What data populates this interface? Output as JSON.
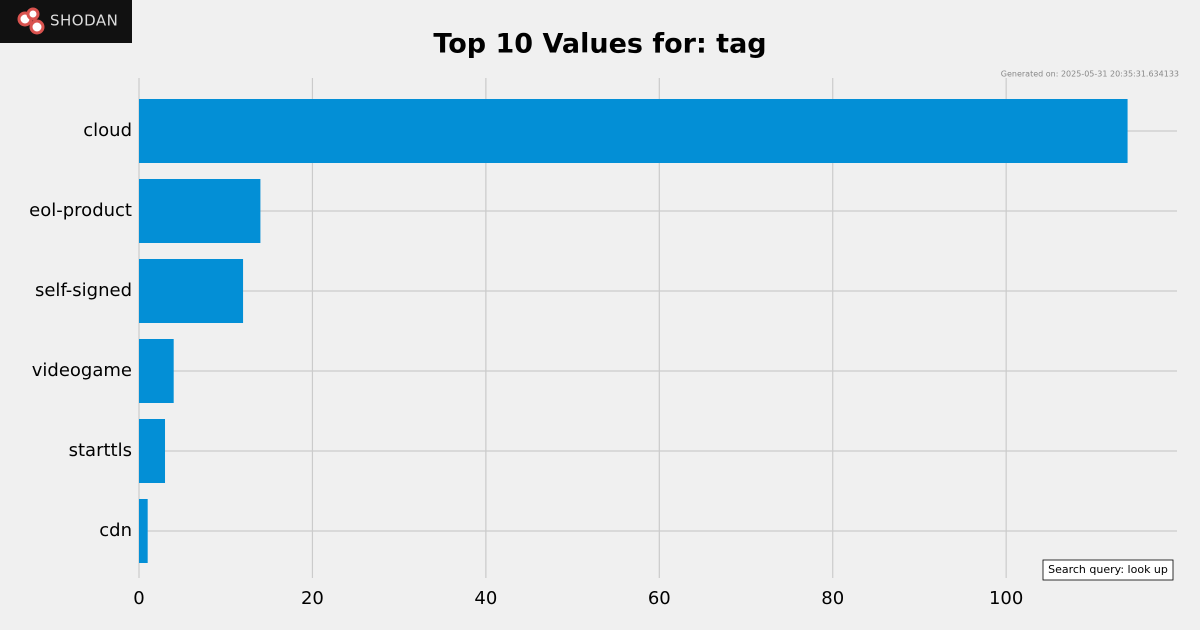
{
  "logo": "SHODAN",
  "chart_data": {
    "type": "barh",
    "title": "Top 10 Values for: tag",
    "subtitle": "Generated on: 2025-05-31 20:35:31.634133",
    "annotation": "Search query: look up",
    "categories": [
      "cloud",
      "eol-product",
      "self-signed",
      "videogame",
      "starttls",
      "cdn"
    ],
    "values": [
      114,
      14,
      12,
      4,
      3,
      1
    ],
    "color": "#038fd6",
    "xlim": [
      0,
      119.7
    ],
    "xticks": [
      0,
      20,
      40,
      60,
      80,
      100
    ],
    "grid": true
  }
}
